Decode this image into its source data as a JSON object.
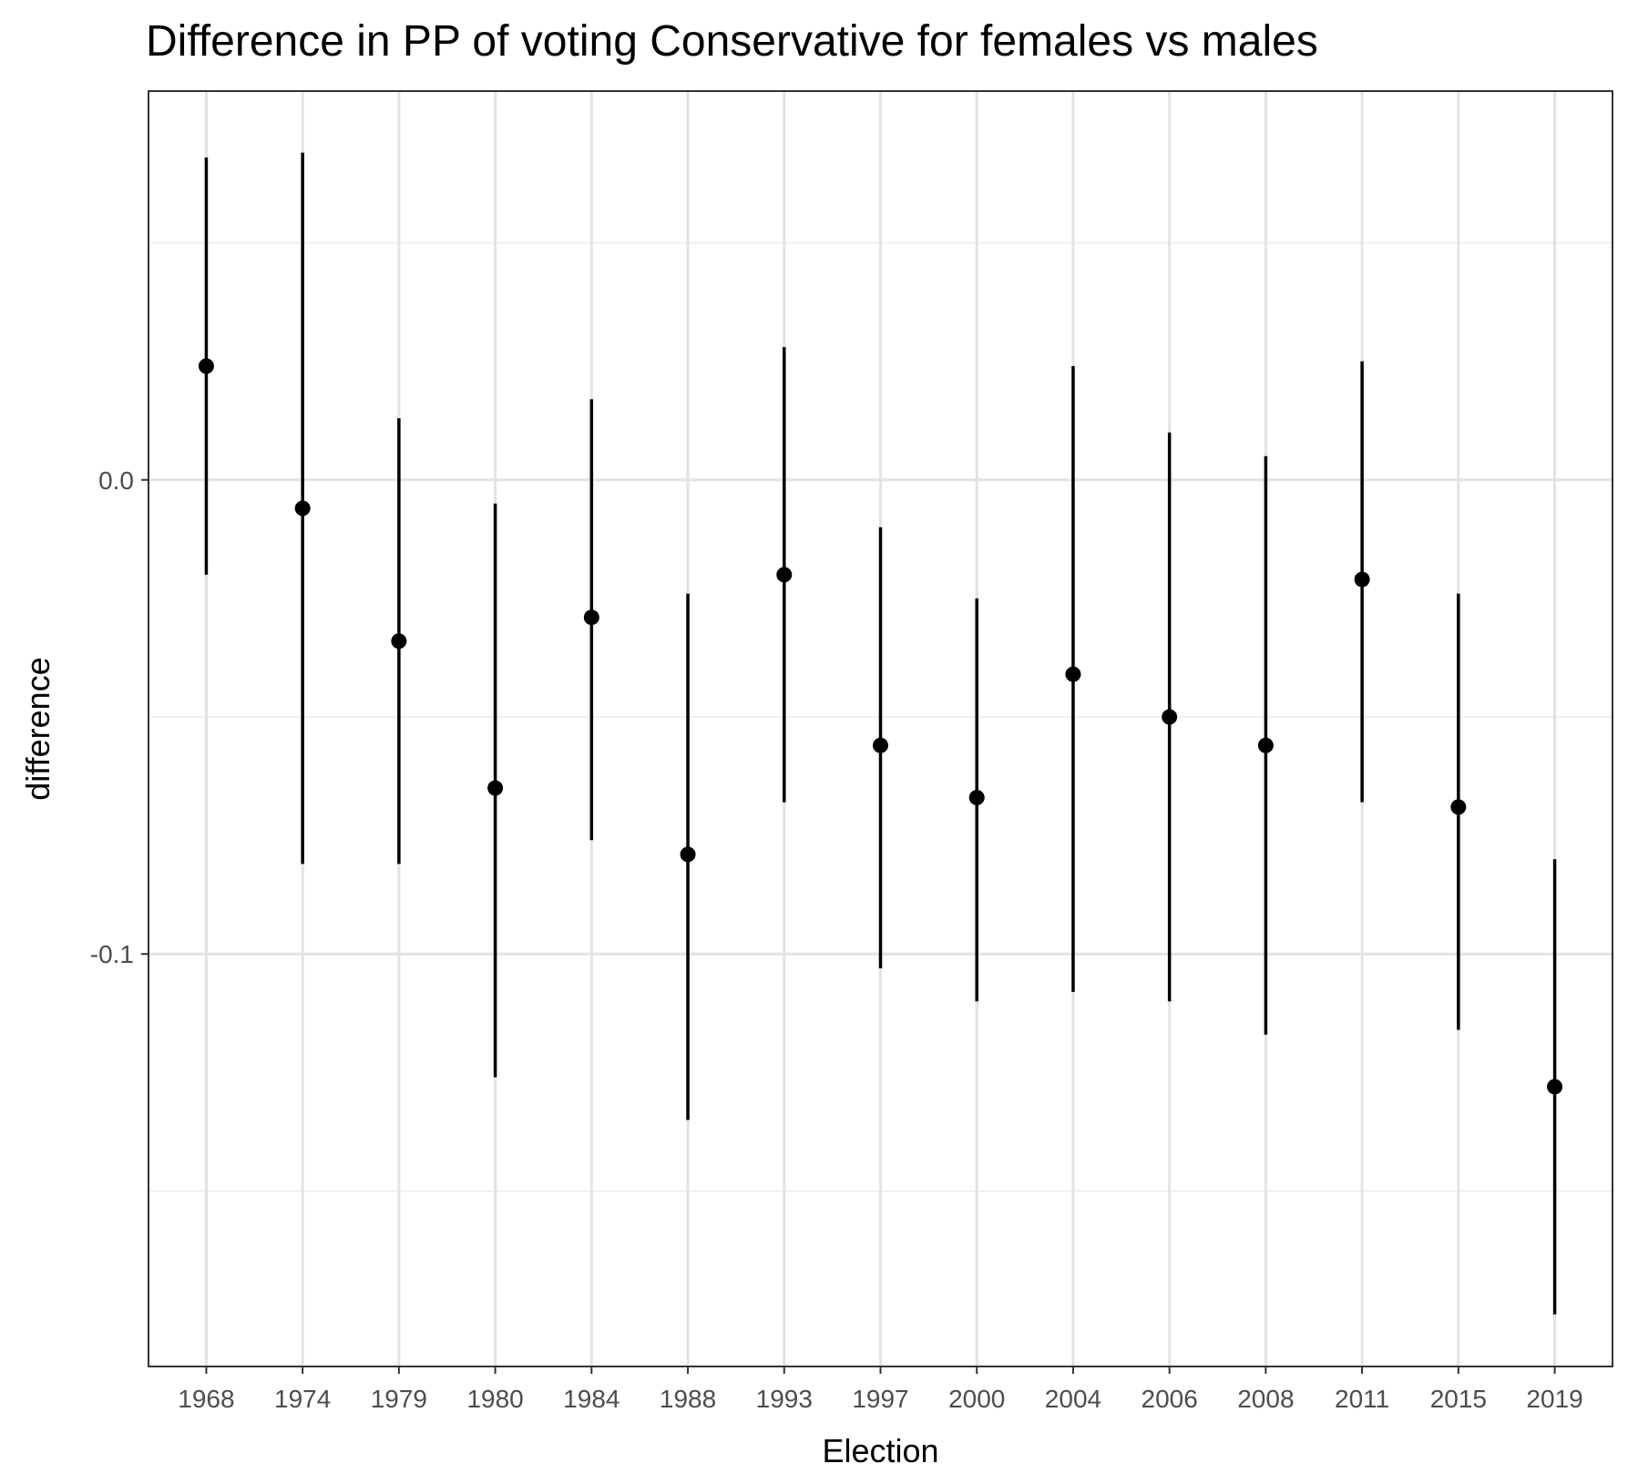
{
  "chart_data": {
    "type": "errorbar",
    "title": "Difference in PP of voting Conservative for females vs males",
    "xlabel": "Election",
    "ylabel": "difference",
    "categories": [
      "1968",
      "1974",
      "1979",
      "1980",
      "1984",
      "1988",
      "1993",
      "1997",
      "2000",
      "2004",
      "2006",
      "2008",
      "2011",
      "2015",
      "2019"
    ],
    "values": [
      0.024,
      -0.006,
      -0.034,
      -0.065,
      -0.029,
      -0.079,
      -0.02,
      -0.056,
      -0.067,
      -0.041,
      -0.05,
      -0.056,
      -0.021,
      -0.069,
      -0.128
    ],
    "lower": [
      -0.02,
      -0.081,
      -0.081,
      -0.126,
      -0.076,
      -0.135,
      -0.068,
      -0.103,
      -0.11,
      -0.108,
      -0.11,
      -0.117,
      -0.068,
      -0.116,
      -0.176
    ],
    "upper": [
      0.068,
      0.069,
      0.013,
      -0.005,
      0.017,
      -0.024,
      0.028,
      -0.01,
      -0.025,
      0.024,
      0.01,
      0.005,
      0.025,
      -0.024,
      -0.08
    ],
    "yticks": [
      0.0,
      -0.1
    ],
    "ytick_labels": [
      "0.0",
      "-0.1"
    ],
    "ylim": [
      -0.187,
      0.082
    ],
    "grid": true,
    "theme": "bw",
    "color": "#000000"
  }
}
